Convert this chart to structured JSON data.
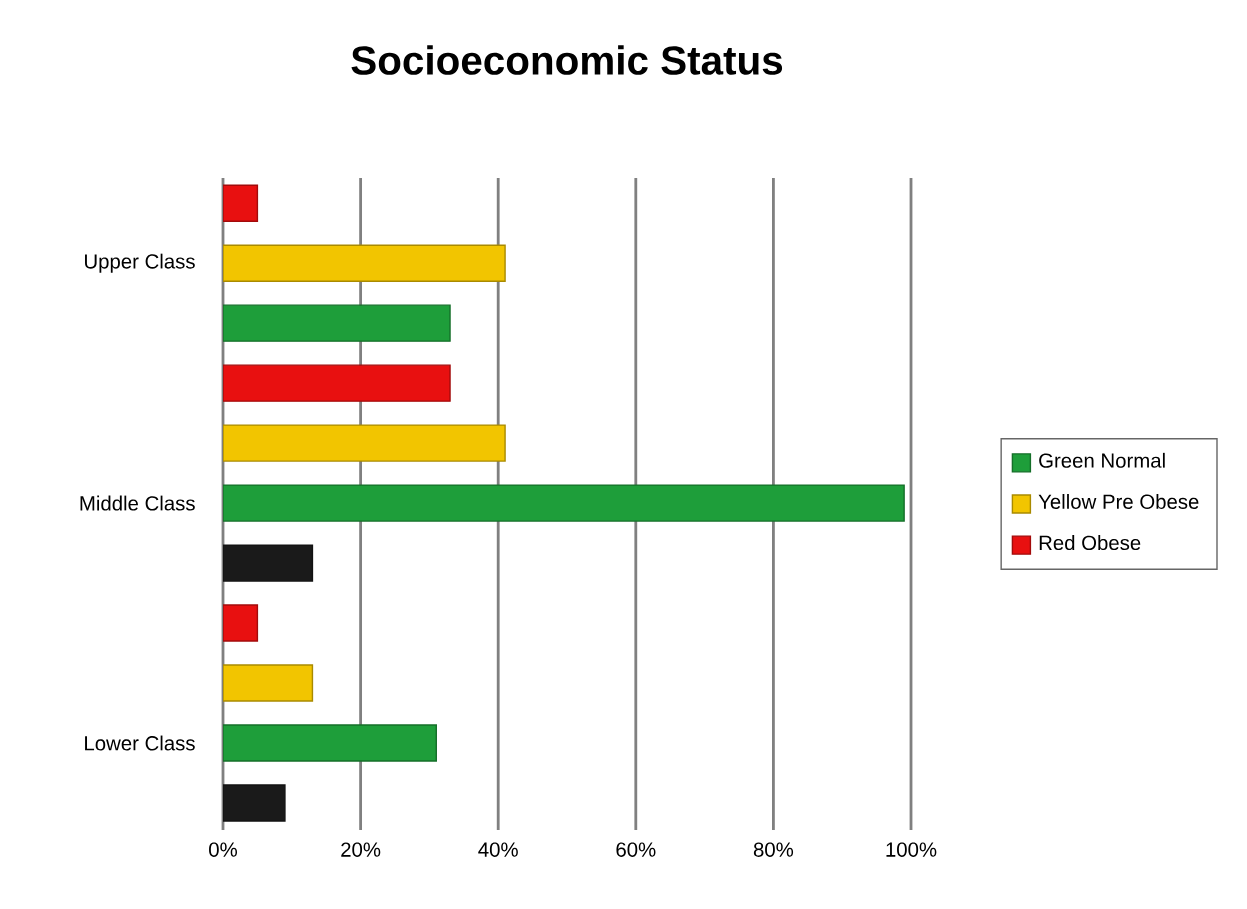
{
  "chart_data": {
    "type": "bar",
    "orientation": "horizontal",
    "title": "Socioeconomic Status",
    "categories": [
      null,
      "Upper Class",
      null,
      null,
      null,
      "Middle Class",
      null,
      null,
      null,
      "Lower Class",
      null
    ],
    "series": [
      {
        "color": "#1a1a1a",
        "values": [
          null,
          null,
          null,
          null,
          null,
          null,
          13,
          null,
          null,
          null,
          9
        ]
      },
      {
        "name": "Green Normal",
        "color": "#1e9e3a",
        "values": [
          null,
          null,
          33,
          null,
          null,
          99,
          null,
          null,
          null,
          31,
          null
        ]
      },
      {
        "name": "Yellow Pre Obese",
        "color": "#f2c500",
        "values": [
          null,
          41,
          null,
          null,
          41,
          null,
          null,
          null,
          13,
          null,
          null
        ]
      },
      {
        "name": "Red Obese",
        "color": "#e81010",
        "values": [
          5,
          null,
          null,
          33,
          null,
          null,
          null,
          5,
          null,
          null,
          null
        ]
      }
    ],
    "xlim": [
      0,
      100
    ],
    "xticks": [
      {
        "value": 0,
        "label": "0%"
      },
      {
        "value": 20,
        "label": "20%"
      },
      {
        "value": 40,
        "label": "40%"
      },
      {
        "value": 60,
        "label": "60%"
      },
      {
        "value": 80,
        "label": "80%"
      },
      {
        "value": 100,
        "label": "100%"
      }
    ],
    "grid": "x",
    "legend": "right"
  }
}
